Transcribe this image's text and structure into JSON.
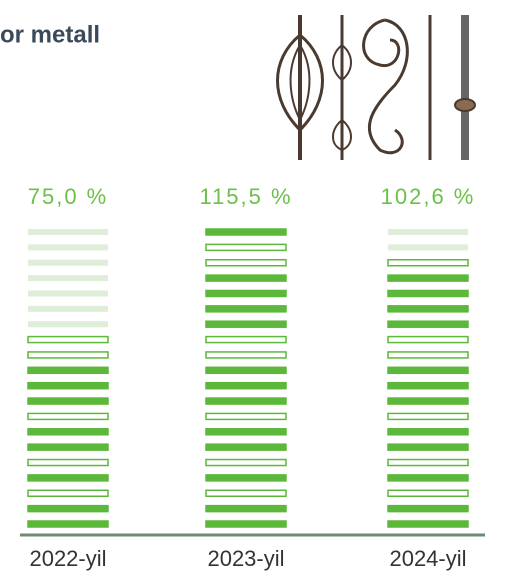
{
  "chart_data": {
    "type": "bar",
    "title": "or metall",
    "categories": [
      "2022-yil",
      "2023-yil",
      "2024-yil"
    ],
    "values": [
      75.0,
      115.5,
      102.6
    ],
    "value_labels": [
      "75,0 %",
      "115,5 %",
      "102,6 %"
    ],
    "color": "#5cb83a"
  }
}
